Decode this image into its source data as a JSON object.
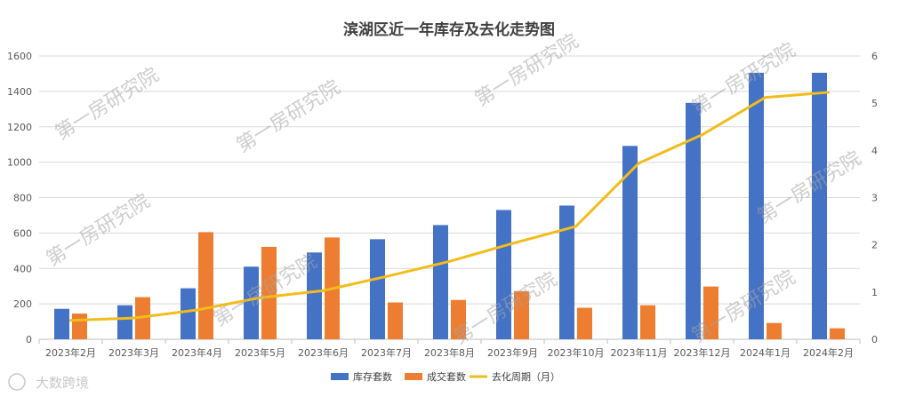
{
  "chart_data": {
    "type": "bar",
    "title": "滨湖区近一年库存及去化走势图",
    "categories": [
      "2023年2月",
      "2023年3月",
      "2023年4月",
      "2023年5月",
      "2023年6月",
      "2023年7月",
      "2023年8月",
      "2023年9月",
      "2023年10月",
      "2023年11月",
      "2023年12月",
      "2024年1月",
      "2024年2月"
    ],
    "series": [
      {
        "name": "库存套数",
        "type": "bar",
        "axis": "left",
        "color": "#4472C4",
        "values": [
          172,
          192,
          288,
          410,
          490,
          565,
          645,
          730,
          755,
          1092,
          1335,
          1505,
          1505
        ]
      },
      {
        "name": "成交套数",
        "type": "bar",
        "axis": "left",
        "color": "#ED7D31",
        "values": [
          145,
          238,
          605,
          522,
          575,
          208,
          222,
          272,
          178,
          192,
          298,
          92,
          62
        ]
      },
      {
        "name": "去化周期（月）",
        "type": "line",
        "axis": "right",
        "color": "#F2BC1B",
        "values": [
          0.4,
          0.45,
          0.62,
          0.88,
          1.03,
          1.33,
          1.65,
          2.03,
          2.39,
          3.73,
          4.33,
          5.12,
          5.23
        ]
      }
    ],
    "y_left": {
      "min": 0,
      "max": 1600,
      "step": 200
    },
    "y_right": {
      "min": 0,
      "max": 6,
      "step": 1
    },
    "legend_position": "bottom",
    "grid": true
  },
  "watermark": {
    "text": "第一房研究院"
  },
  "logo": {
    "text": "大数跨境"
  }
}
